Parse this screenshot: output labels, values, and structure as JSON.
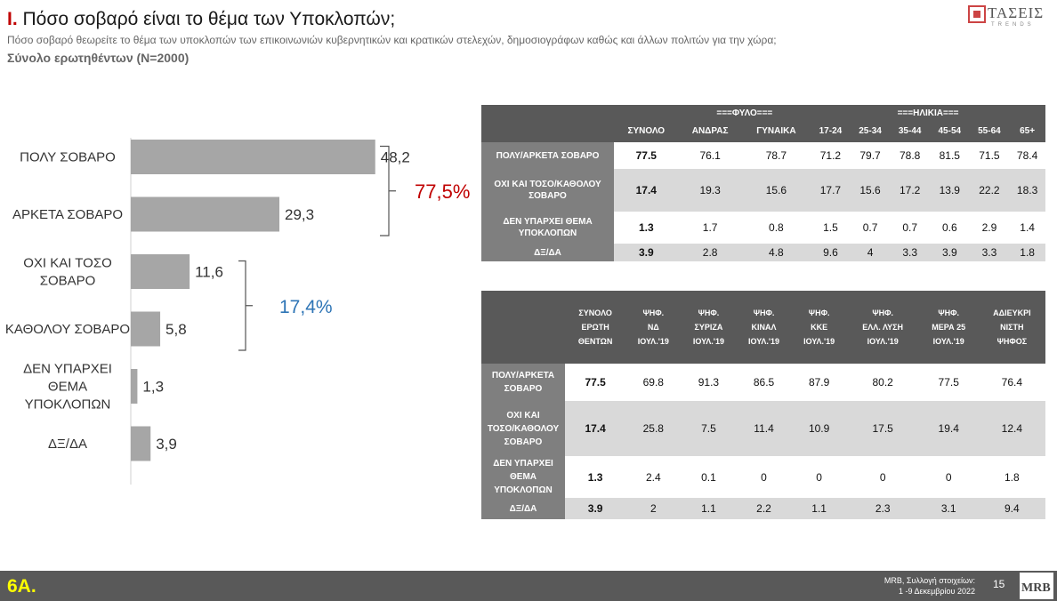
{
  "header": {
    "title_prefix": "I.",
    "title_rest": "Πόσο σοβαρό είναι το θέμα των Υποκλοπών;",
    "subtitle": "Πόσο σοβαρό θεωρείτε το θέμα των υποκλοπών των επικοινωνιών κυβερνητικών και κρατικών στελεχών, δημοσιογράφων καθώς και άλλων πολιτών για την χώρα;",
    "base": "Σύνολο ερωτηθέντων (N=2000)"
  },
  "logo": {
    "name": "ΤΑΣΕΙΣ",
    "tag": "TRENDS"
  },
  "chart_data": {
    "type": "bar",
    "orientation": "horizontal",
    "categories": [
      [
        "ΠΟΛΥ ΣΟΒΑΡΟ"
      ],
      [
        "ΑΡΚΕΤΑ ΣΟΒΑΡΟ"
      ],
      [
        "ΟΧΙ ΚΑΙ ΤΟΣΟ",
        "ΣΟΒΑΡΟ"
      ],
      [
        "ΚΑΘΟΛΟΥ ΣΟΒΑΡΟ"
      ],
      [
        "ΔΕΝ ΥΠΑΡΧΕΙ",
        "ΘΕΜΑ",
        "ΥΠΟΚΛΟΠΩΝ"
      ],
      [
        "ΔΞ/ΔΑ"
      ]
    ],
    "values": [
      48.2,
      29.3,
      11.6,
      5.8,
      1.3,
      3.9
    ],
    "value_labels": [
      "48,2",
      "29,3",
      "11,6",
      "5,8",
      "1,3",
      "3,9"
    ],
    "xlim": [
      0,
      50
    ],
    "aggregates": [
      {
        "label": "77,5%",
        "from": 0,
        "to": 1,
        "color": "#c00000"
      },
      {
        "label": "17,4%",
        "from": 2,
        "to": 3,
        "color": "#2e75b6"
      }
    ],
    "bar_color": "#a6a6a6"
  },
  "table1": {
    "group_headers": [
      {
        "label": "===ΦΥΛΟ===",
        "start": 1,
        "span": 2
      },
      {
        "label": "===ΗΛΙΚΙΑ===",
        "start": 3,
        "span": 6
      }
    ],
    "columns": [
      "ΣΥΝΟΛΟ",
      "ΑΝΔΡΑΣ",
      "ΓΥΝΑΙΚΑ",
      "17-24",
      "25-34",
      "35-44",
      "45-54",
      "55-64",
      "65+"
    ],
    "rows": [
      {
        "label": [
          "ΠΟΛΥ/ΑΡΚΕΤΑ ΣΟΒΑΡΟ"
        ],
        "values": [
          "77.5",
          "76.1",
          "78.7",
          "71.2",
          "79.7",
          "78.8",
          "81.5",
          "71.5",
          "78.4"
        ]
      },
      {
        "label": [
          "ΟΧΙ ΚΑΙ ΤΟΣΟ/ΚΑΘΟΛΟΥ",
          "ΣΟΒΑΡΟ"
        ],
        "values": [
          "17.4",
          "19.3",
          "15.6",
          "17.7",
          "15.6",
          "17.2",
          "13.9",
          "22.2",
          "18.3"
        ]
      },
      {
        "label": [
          "ΔΕΝ ΥΠΑΡΧΕΙ ΘΕΜΑ",
          "ΥΠΟΚΛΟΠΩΝ"
        ],
        "values": [
          "1.3",
          "1.7",
          "0.8",
          "1.5",
          "0.7",
          "0.7",
          "0.6",
          "2.9",
          "1.4"
        ]
      },
      {
        "label": [
          "ΔΞ/ΔΑ"
        ],
        "values": [
          "3.9",
          "2.8",
          "4.8",
          "9.6",
          "4",
          "3.3",
          "3.9",
          "3.3",
          "1.8"
        ]
      }
    ]
  },
  "table2": {
    "columns": [
      [
        "ΣΥΝΟΛΟ",
        "ΕΡΩΤΗ",
        "ΘΕΝΤΩΝ"
      ],
      [
        "ΨΗΦ.",
        "ΝΔ",
        "ΙΟΥΛ.'19"
      ],
      [
        "ΨΗΦ.",
        "ΣΥΡΙΖΑ",
        "ΙΟΥΛ.'19"
      ],
      [
        "ΨΗΦ.",
        "ΚΙΝΑΛ",
        "ΙΟΥΛ.'19"
      ],
      [
        "ΨΗΦ.",
        "ΚΚΕ",
        "ΙΟΥΛ.'19"
      ],
      [
        "ΨΗΦ.",
        "ΕΛΛ. ΛΥΣΗ",
        "ΙΟΥΛ.'19"
      ],
      [
        "ΨΗΦ.",
        "ΜΕΡΑ 25",
        "ΙΟΥΛ.'19"
      ],
      [
        "ΑΔΙΕΥΚΡΙ",
        "ΝΙΣΤΗ",
        "ΨΗΦΟΣ"
      ]
    ],
    "rows": [
      {
        "label": [
          "ΠΟΛΥ/ΑΡΚΕΤΑ",
          "ΣΟΒΑΡΟ"
        ],
        "values": [
          "77.5",
          "69.8",
          "91.3",
          "86.5",
          "87.9",
          "80.2",
          "77.5",
          "76.4"
        ]
      },
      {
        "label": [
          "ΟΧΙ ΚΑΙ",
          "ΤΟΣΟ/ΚΑΘΟΛΟΥ",
          "ΣΟΒΑΡΟ"
        ],
        "values": [
          "17.4",
          "25.8",
          "7.5",
          "11.4",
          "10.9",
          "17.5",
          "19.4",
          "12.4"
        ]
      },
      {
        "label": [
          "ΔΕΝ ΥΠΑΡΧΕΙ",
          "ΘΕΜΑ",
          "ΥΠΟΚΛΟΠΩΝ"
        ],
        "values": [
          "1.3",
          "2.4",
          "0.1",
          "0",
          "0",
          "0",
          "0",
          "1.8"
        ]
      },
      {
        "label": [
          "ΔΞ/ΔΑ"
        ],
        "values": [
          "3.9",
          "2",
          "1.1",
          "2.2",
          "1.1",
          "2.3",
          "3.1",
          "9.4"
        ]
      }
    ]
  },
  "footer": {
    "slide_number": "6Α.",
    "source_line1": "MRB, Συλλογή στοιχείων:",
    "source_line2": "1 -9 Δεκεμβρίου 2022",
    "page": "15",
    "logo_text": "MRB"
  }
}
